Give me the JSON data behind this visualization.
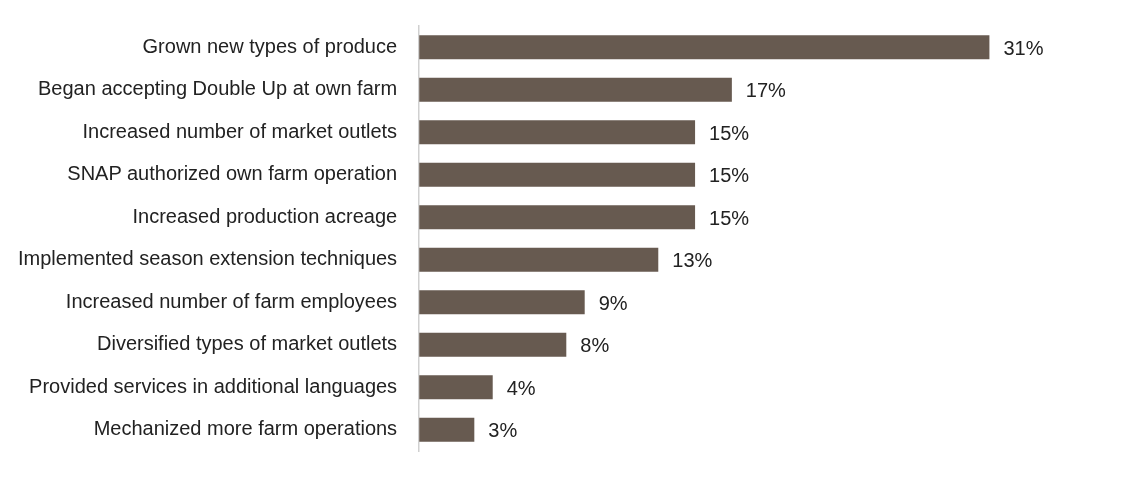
{
  "chart_data": {
    "type": "bar",
    "orientation": "horizontal",
    "categories": [
      "Grown new types of produce",
      "Began accepting Double Up at own farm",
      "Increased number of market outlets",
      "SNAP authorized own farm operation",
      "Increased production acreage",
      "Implemented season extension techniques",
      "Increased number of farm employees",
      "Diversified types of market outlets",
      "Provided services in additional languages",
      "Mechanized more farm operations"
    ],
    "values": [
      31,
      17,
      15,
      15,
      15,
      13,
      9,
      8,
      4,
      3
    ],
    "value_labels": [
      "31%",
      "17%",
      "15%",
      "15%",
      "15%",
      "13%",
      "9%",
      "8%",
      "4%",
      "3%"
    ],
    "color": "#675a50",
    "tick_labels": "y",
    "legend": false
  }
}
